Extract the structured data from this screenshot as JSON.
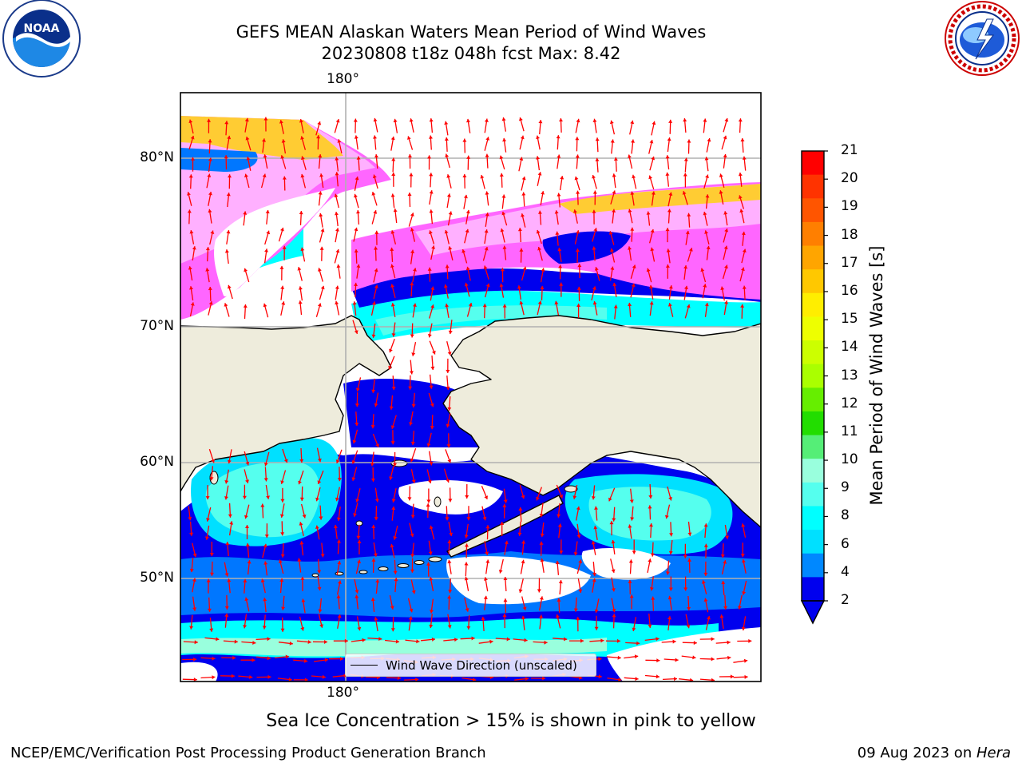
{
  "title": {
    "line1": "GEFS MEAN Alaskan Waters Mean Period of Wind Waves",
    "line2": "20230808 t18z 048h fcst   Max: 8.42"
  },
  "map": {
    "lon_label_top": "180°",
    "lon_label_bottom": "180°",
    "lat_labels": [
      "80°N",
      "70°N",
      "60°N",
      "50°N"
    ],
    "legend_label": "Wind Wave Direction (unscaled)",
    "land_color": "#eeecdc",
    "arrow_color": "#ff0000"
  },
  "colorbar": {
    "label": "Mean Period of Wind Waves [s]",
    "ticks": [
      "21",
      "20",
      "19",
      "18",
      "17",
      "16",
      "15",
      "14",
      "13",
      "12",
      "11",
      "10",
      "9",
      "8",
      "6",
      "4",
      "2"
    ],
    "colors": [
      "#ff0000",
      "#ff3300",
      "#ff5500",
      "#ff7f00",
      "#ffa500",
      "#ffc800",
      "#ffee00",
      "#eeff00",
      "#ccff00",
      "#aaff00",
      "#66ee00",
      "#22dd00",
      "#55ee77",
      "#99ffdd",
      "#55ffee",
      "#00ffff",
      "#00e0ff",
      "#0088ff",
      "#0000ee"
    ]
  },
  "caption": "Sea Ice Concentration > 15% is shown in pink to yellow",
  "footer": {
    "left": "NCEP/EMC/Verification Post Processing Product Generation Branch",
    "right_date": "09 Aug 2023 on ",
    "right_host": "Hera"
  },
  "logos": {
    "noaa_text": "NOAA",
    "nws_text": "NATIONAL WEATHER SERVICE"
  }
}
